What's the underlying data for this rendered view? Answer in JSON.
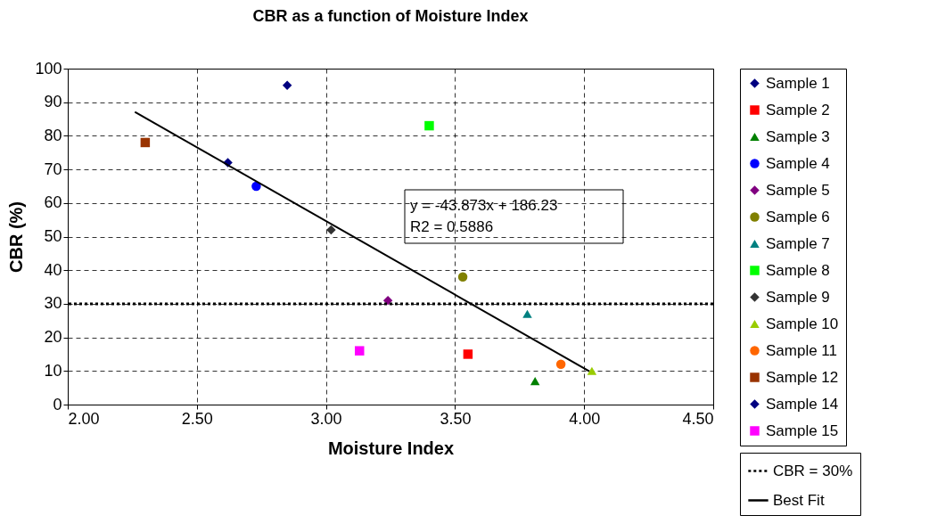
{
  "chart_data": {
    "type": "scatter",
    "title": "CBR as a function of Moisture Index",
    "xlabel": "Moisture Index",
    "ylabel": "CBR (%)",
    "xlim": [
      2.0,
      4.5
    ],
    "xticks": [
      {
        "value": 2.0,
        "label": "2.00"
      },
      {
        "value": 2.5,
        "label": "2.50"
      },
      {
        "value": 3.0,
        "label": "3.00"
      },
      {
        "value": 3.5,
        "label": "3.50"
      },
      {
        "value": 4.0,
        "label": "4.00"
      },
      {
        "value": 4.5,
        "label": "4.50"
      }
    ],
    "ylim": [
      0,
      100
    ],
    "yticks": [
      0,
      10,
      20,
      30,
      40,
      50,
      60,
      70,
      80,
      90,
      100
    ],
    "grid": true,
    "legend": "right",
    "series": [
      {
        "name": "Sample 1",
        "color": "#000080",
        "marker": "diamond",
        "x": [
          2.62
        ],
        "values": [
          72
        ]
      },
      {
        "name": "Sample 2",
        "color": "#ff0000",
        "marker": "square",
        "x": [
          3.55
        ],
        "values": [
          15
        ]
      },
      {
        "name": "Sample 3",
        "color": "#008000",
        "marker": "triangle",
        "x": [
          3.81
        ],
        "values": [
          7
        ]
      },
      {
        "name": "Sample 4",
        "color": "#0000ff",
        "marker": "circle",
        "x": [
          2.73
        ],
        "values": [
          65
        ]
      },
      {
        "name": "Sample 5",
        "color": "#800080",
        "marker": "diamond",
        "x": [
          3.24
        ],
        "values": [
          31
        ]
      },
      {
        "name": "Sample 6",
        "color": "#808000",
        "marker": "circle",
        "x": [
          3.53
        ],
        "values": [
          38
        ]
      },
      {
        "name": "Sample 7",
        "color": "#008080",
        "marker": "triangle",
        "x": [
          3.78
        ],
        "values": [
          27
        ]
      },
      {
        "name": "Sample 8",
        "color": "#00ff00",
        "marker": "square",
        "x": [
          3.4
        ],
        "values": [
          83
        ]
      },
      {
        "name": "Sample 9",
        "color": "#333333",
        "marker": "diamond",
        "x": [
          3.02
        ],
        "values": [
          52
        ]
      },
      {
        "name": "Sample 10",
        "color": "#99cc00",
        "marker": "triangle",
        "x": [
          4.03
        ],
        "values": [
          10
        ]
      },
      {
        "name": "Sample 11",
        "color": "#ff6600",
        "marker": "circle",
        "x": [
          3.91
        ],
        "values": [
          12
        ]
      },
      {
        "name": "Sample 12",
        "color": "#993300",
        "marker": "square",
        "x": [
          2.3
        ],
        "values": [
          78
        ]
      },
      {
        "name": "Sample 14",
        "color": "#000080",
        "marker": "diamond",
        "x": [
          2.85
        ],
        "values": [
          95
        ]
      },
      {
        "name": "Sample 15",
        "color": "#ff00ff",
        "marker": "square",
        "x": [
          3.13
        ],
        "values": [
          16
        ]
      },
      {
        "name": "Best Fit",
        "type": "line",
        "color": "#000000",
        "line_style": "solid",
        "x": [
          2.26,
          4.02
        ],
        "values": [
          87.1,
          9.9
        ]
      }
    ],
    "ref_lines": [
      {
        "axis": "y",
        "value": 30,
        "label": "CBR = 30%",
        "color": "#000000",
        "line_style": "dotted"
      }
    ],
    "annotations": [
      "y = -43.873x + 186.23",
      "R2 = 0.5886"
    ]
  }
}
